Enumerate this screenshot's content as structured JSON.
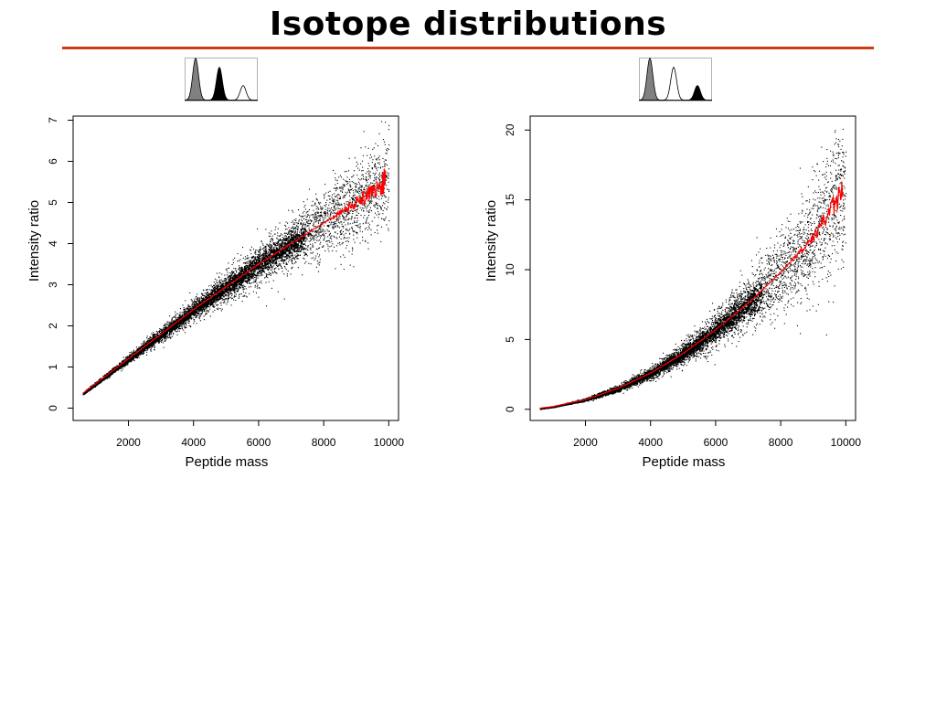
{
  "title": "Isotope distributions",
  "colors": {
    "title_rule": "#d03a12",
    "points": "#000000",
    "trend": "#ff0000",
    "peak_gray": "#808080",
    "peak_black": "#000000"
  },
  "icons": {
    "left": [
      "gray-peak",
      "black-peak",
      "white-peak"
    ],
    "right": [
      "gray-peak",
      "white-peak",
      "black-peak"
    ]
  },
  "chart_data": [
    {
      "type": "scatter",
      "title": "",
      "xlabel": "Peptide mass",
      "ylabel": "Intensity ratio",
      "xlim": [
        300,
        10300
      ],
      "ylim": [
        -0.3,
        7.1
      ],
      "xticks": [
        2000,
        4000,
        6000,
        8000,
        10000
      ],
      "yticks": [
        0,
        1,
        2,
        3,
        4,
        5,
        6,
        7
      ],
      "grid": false,
      "series": [
        {
          "kind": "points",
          "note_trend": "dense point cloud around red trend line",
          "x": [
            500,
            1000,
            2000,
            3000,
            4000,
            5000,
            6000,
            7000,
            8000,
            9000,
            10000
          ],
          "y": [
            0.3,
            0.6,
            1.2,
            1.8,
            2.4,
            2.95,
            3.5,
            4.0,
            4.5,
            5.0,
            5.6
          ]
        },
        {
          "kind": "trend",
          "x": [
            500,
            1000,
            2000,
            3000,
            4000,
            5000,
            6000,
            7000,
            8000,
            9000,
            10000
          ],
          "y": [
            0.3,
            0.6,
            1.2,
            1.8,
            2.4,
            2.95,
            3.5,
            4.0,
            4.5,
            5.0,
            5.6
          ]
        }
      ]
    },
    {
      "type": "scatter",
      "title": "",
      "xlabel": "Peptide mass",
      "ylabel": "Intensity ratio",
      "xlim": [
        300,
        10300
      ],
      "ylim": [
        -0.8,
        21
      ],
      "xticks": [
        2000,
        4000,
        6000,
        8000,
        10000
      ],
      "yticks": [
        0,
        5,
        10,
        15,
        20
      ],
      "grid": false,
      "series": [
        {
          "kind": "points",
          "x": [
            500,
            1000,
            2000,
            3000,
            4000,
            5000,
            6000,
            7000,
            8000,
            9000,
            10000
          ],
          "y": [
            0.05,
            0.2,
            0.7,
            1.5,
            2.6,
            4.0,
            5.7,
            7.6,
            9.8,
            12.3,
            16.0
          ]
        },
        {
          "kind": "trend",
          "x": [
            500,
            1000,
            2000,
            3000,
            4000,
            5000,
            6000,
            7000,
            8000,
            9000,
            10000
          ],
          "y": [
            0.05,
            0.2,
            0.7,
            1.5,
            2.6,
            4.0,
            5.7,
            7.6,
            9.8,
            12.3,
            16.0
          ]
        }
      ]
    }
  ]
}
